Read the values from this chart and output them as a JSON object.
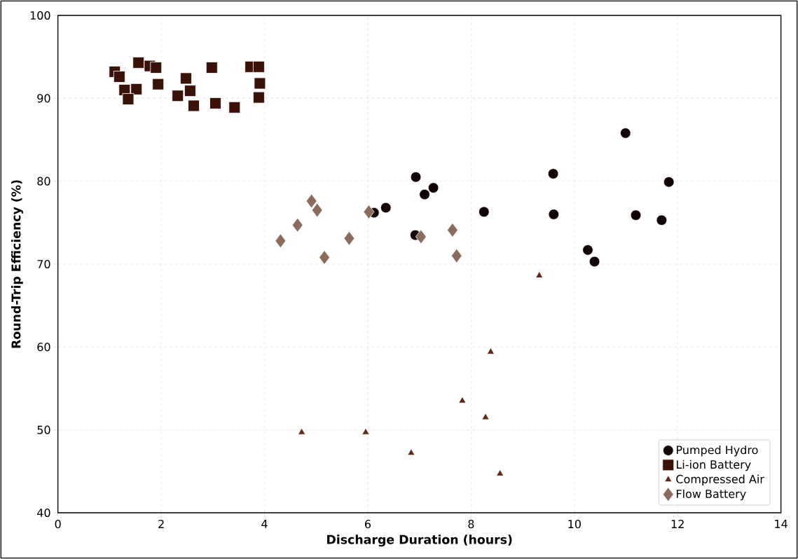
{
  "chart_data": {
    "type": "scatter",
    "xlabel": "Discharge Duration (hours)",
    "ylabel": "Round-Trip Efficiency (%)",
    "xlim": [
      0,
      14
    ],
    "ylim": [
      40,
      100
    ],
    "xticks": [
      0,
      2,
      4,
      6,
      8,
      10,
      12,
      14
    ],
    "yticks": [
      40,
      50,
      60,
      70,
      80,
      90,
      100
    ],
    "grid": true,
    "legend": "bottom right",
    "series": [
      {
        "name": "Pumped Hydro",
        "color": "#120404",
        "marker": "circle",
        "x": [
          6.93,
          7.1,
          7.27,
          6.35,
          6.12,
          6.92,
          8.25,
          9.59,
          9.6,
          10.26,
          10.39,
          10.99,
          11.19,
          11.69,
          11.83
        ],
        "values": [
          80.5,
          78.4,
          79.2,
          76.8,
          76.2,
          73.5,
          76.3,
          80.9,
          76.0,
          71.7,
          70.3,
          85.8,
          75.9,
          75.3,
          79.9
        ]
      },
      {
        "name": "Li-ion Battery",
        "color": "#3a1208",
        "marker": "square",
        "x": [
          1.1,
          1.19,
          1.56,
          1.78,
          1.9,
          1.29,
          1.52,
          1.36,
          1.94,
          2.48,
          2.32,
          2.56,
          2.63,
          2.98,
          3.05,
          3.42,
          3.73,
          3.89,
          3.91,
          3.89
        ],
        "values": [
          93.2,
          92.6,
          94.3,
          93.9,
          93.7,
          91.0,
          91.1,
          89.9,
          91.7,
          92.4,
          90.3,
          90.9,
          89.1,
          93.7,
          89.4,
          88.9,
          93.8,
          93.8,
          91.8,
          90.1
        ]
      },
      {
        "name": "Compressed Air",
        "color": "#5e2a18",
        "marker": "triangle",
        "x": [
          9.32,
          8.38,
          7.83,
          8.28,
          4.72,
          5.96,
          6.84,
          8.56
        ],
        "values": [
          68.6,
          59.4,
          53.5,
          51.5,
          49.7,
          49.7,
          47.2,
          44.7
        ]
      },
      {
        "name": "Flow Battery",
        "color": "#8c6a5c",
        "marker": "diamond",
        "x": [
          4.91,
          5.02,
          4.64,
          4.31,
          5.16,
          5.64,
          6.02,
          7.03,
          7.64,
          7.72
        ],
        "values": [
          77.6,
          76.5,
          74.7,
          72.8,
          70.8,
          73.1,
          76.3,
          73.3,
          74.1,
          71.0
        ]
      }
    ]
  }
}
